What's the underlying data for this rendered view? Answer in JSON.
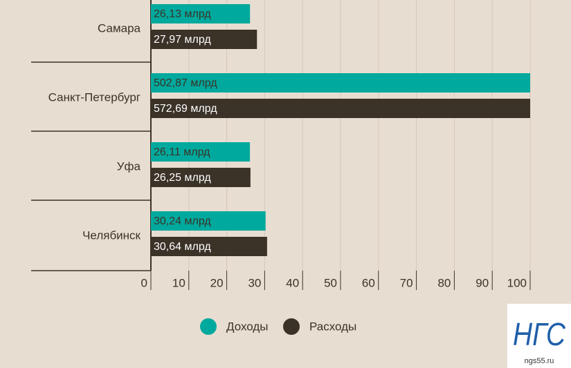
{
  "chart_data": {
    "type": "bar",
    "orientation": "horizontal",
    "categories": [
      "Самара",
      "Санкт-Петербург",
      "Уфа",
      "Челябинск"
    ],
    "series": [
      {
        "name": "Доходы",
        "color": "#00a99d",
        "values": [
          26.13,
          502.87,
          26.11,
          30.24
        ],
        "value_labels": [
          "26,13 млрд",
          "502,87 млрд",
          "26,11 млрд",
          "30,24 млрд"
        ]
      },
      {
        "name": "Расходы",
        "color": "#3b3228",
        "values": [
          27.97,
          572.69,
          26.25,
          30.64
        ],
        "value_labels": [
          "27,97 млрд",
          "572,69 млрд",
          "26,25 млрд",
          "30,64 млрд"
        ]
      }
    ],
    "xlim": [
      0,
      100
    ],
    "xticks": [
      0,
      10,
      20,
      30,
      40,
      50,
      60,
      70,
      80,
      90,
      100
    ],
    "grid": true
  },
  "logo": {
    "title": "НГС",
    "url": "ngs55.ru"
  }
}
